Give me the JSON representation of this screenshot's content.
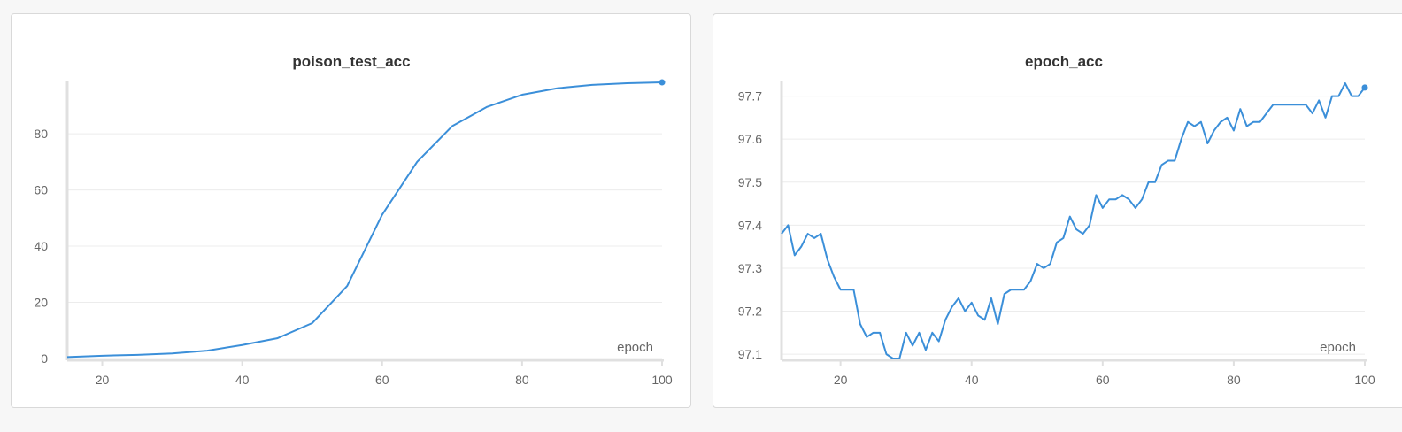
{
  "chart_data": [
    {
      "type": "line",
      "title": "poison_test_acc",
      "xlabel": "epoch",
      "ylabel": "",
      "xlim": [
        15,
        100
      ],
      "ylim": [
        0,
        98
      ],
      "xticks": [
        20,
        40,
        60,
        80,
        100
      ],
      "yticks": [
        0,
        20,
        40,
        60,
        80
      ],
      "grid": true,
      "color": "#3b8fd9",
      "series": [
        {
          "x": [
            15,
            20,
            25,
            30,
            35,
            40,
            45,
            50,
            55,
            60,
            65,
            70,
            75,
            80,
            85,
            90,
            95,
            100
          ],
          "y": [
            0.5,
            1.0,
            1.3,
            1.8,
            2.8,
            4.8,
            7.2,
            12.6,
            25.8,
            51.2,
            70.0,
            82.7,
            89.6,
            93.9,
            96.2,
            97.4,
            98.0,
            98.3
          ]
        }
      ]
    },
    {
      "type": "line",
      "title": "epoch_acc",
      "xlabel": "epoch",
      "ylabel": "",
      "xlim": [
        11,
        100
      ],
      "ylim": [
        97.09,
        97.73
      ],
      "xticks": [
        20,
        40,
        60,
        80,
        100
      ],
      "yticks": [
        97.1,
        97.2,
        97.3,
        97.4,
        97.5,
        97.6,
        97.7
      ],
      "grid": true,
      "color": "#3b8fd9",
      "series": [
        {
          "x": [
            11,
            12,
            13,
            14,
            15,
            16,
            17,
            18,
            19,
            20,
            21,
            22,
            23,
            24,
            25,
            26,
            27,
            28,
            29,
            30,
            31,
            32,
            33,
            34,
            35,
            36,
            37,
            38,
            39,
            40,
            41,
            42,
            43,
            44,
            45,
            46,
            47,
            48,
            49,
            50,
            51,
            52,
            53,
            54,
            55,
            56,
            57,
            58,
            59,
            60,
            61,
            62,
            63,
            64,
            65,
            66,
            67,
            68,
            69,
            70,
            71,
            72,
            73,
            74,
            75,
            76,
            77,
            78,
            79,
            80,
            81,
            82,
            83,
            84,
            85,
            86,
            87,
            88,
            89,
            90,
            91,
            92,
            93,
            94,
            95,
            96,
            97,
            98,
            99,
            100
          ],
          "y": [
            97.38,
            97.4,
            97.33,
            97.35,
            97.38,
            97.37,
            97.38,
            97.32,
            97.28,
            97.25,
            97.25,
            97.25,
            97.17,
            97.14,
            97.15,
            97.15,
            97.1,
            97.09,
            97.09,
            97.15,
            97.12,
            97.15,
            97.11,
            97.15,
            97.13,
            97.18,
            97.21,
            97.23,
            97.2,
            97.22,
            97.19,
            97.18,
            97.23,
            97.17,
            97.24,
            97.25,
            97.25,
            97.25,
            97.27,
            97.31,
            97.3,
            97.31,
            97.36,
            97.37,
            97.42,
            97.39,
            97.38,
            97.4,
            97.47,
            97.44,
            97.46,
            97.46,
            97.47,
            97.46,
            97.44,
            97.46,
            97.5,
            97.5,
            97.54,
            97.55,
            97.55,
            97.6,
            97.64,
            97.63,
            97.64,
            97.59,
            97.62,
            97.64,
            97.65,
            97.62,
            97.67,
            97.63,
            97.64,
            97.64,
            97.66,
            97.68,
            97.68,
            97.68,
            97.68,
            97.68,
            97.68,
            97.66,
            97.69,
            97.65,
            97.7,
            97.7,
            97.73,
            97.7,
            97.7,
            97.72
          ]
        }
      ]
    }
  ]
}
